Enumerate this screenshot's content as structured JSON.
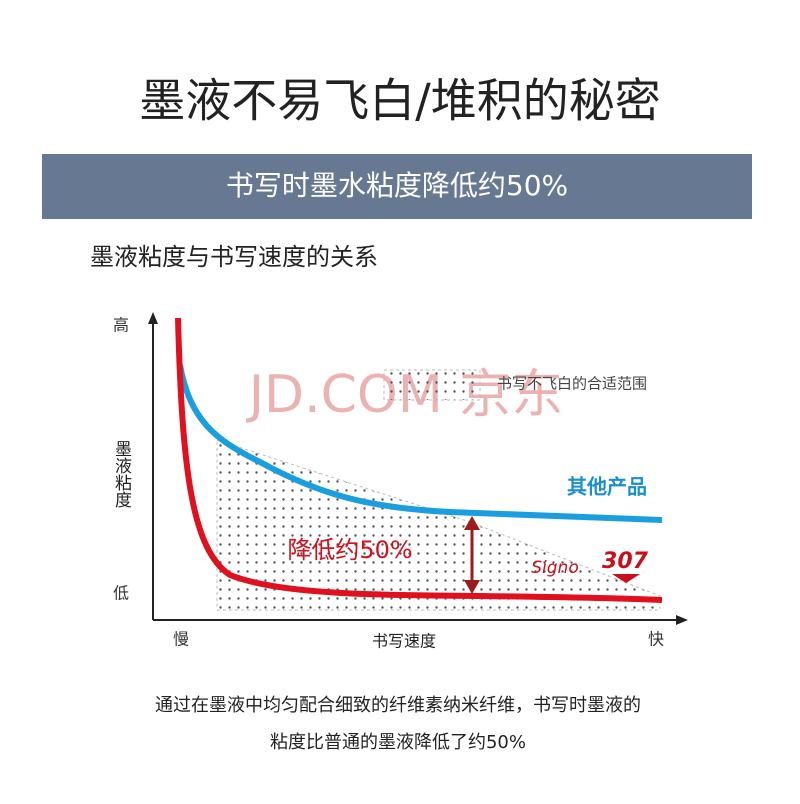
{
  "header": {
    "title": "墨液不易飞白/堆积的秘密",
    "banner": "书写时墨水粘度降低约50%"
  },
  "diagram": {
    "title": "墨液粘度与书写速度的关系",
    "y_high": "高",
    "y_label": "墨液粘度",
    "y_low": "低",
    "x_slow": "慢",
    "x_label": "书写速度",
    "x_fast": "快",
    "range_label": "书写不飞白的合适范围",
    "other_product": "其他产品",
    "reduction": "降低约50%",
    "brand": "Signo",
    "model": "307",
    "watermark": "JD.COM 京东"
  },
  "footer": {
    "lines": [
      "通过在墨液中均匀配合细致的纤维素纳米纤维，书写时墨液的",
      "粘度比普通的墨液降低了约50%"
    ]
  }
}
